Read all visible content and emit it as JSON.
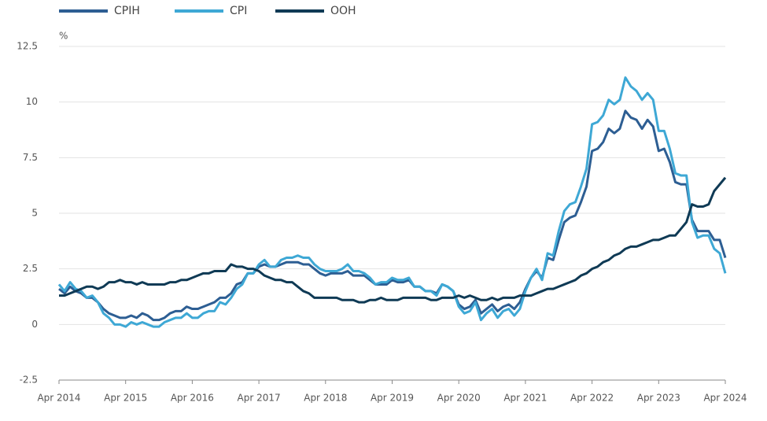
{
  "chart_data": {
    "type": "line",
    "y_label": "%",
    "categories": [
      "Apr 2014",
      null,
      null,
      null,
      null,
      null,
      null,
      null,
      null,
      null,
      null,
      null,
      "Apr 2015",
      null,
      null,
      null,
      null,
      null,
      null,
      null,
      null,
      null,
      null,
      null,
      "Apr 2016",
      null,
      null,
      null,
      null,
      null,
      null,
      null,
      null,
      null,
      null,
      null,
      "Apr 2017",
      null,
      null,
      null,
      null,
      null,
      null,
      null,
      null,
      null,
      null,
      null,
      "Apr 2018",
      null,
      null,
      null,
      null,
      null,
      null,
      null,
      null,
      null,
      null,
      null,
      "Apr 2019",
      null,
      null,
      null,
      null,
      null,
      null,
      null,
      null,
      null,
      null,
      null,
      "Apr 2020",
      null,
      null,
      null,
      null,
      null,
      null,
      null,
      null,
      null,
      null,
      null,
      "Apr 2021",
      null,
      null,
      null,
      null,
      null,
      null,
      null,
      null,
      null,
      null,
      null,
      "Apr 2022",
      null,
      null,
      null,
      null,
      null,
      null,
      null,
      null,
      null,
      null,
      null,
      "Apr 2023",
      null,
      null,
      null,
      null,
      null,
      null,
      null,
      null,
      null,
      null,
      null,
      "Apr 2024"
    ],
    "series": [
      {
        "name": "CPIH",
        "color": "#2d5e93",
        "values": [
          1.6,
          1.4,
          1.7,
          1.5,
          1.4,
          1.2,
          1.2,
          1.0,
          0.7,
          0.5,
          0.4,
          0.3,
          0.3,
          0.4,
          0.3,
          0.5,
          0.4,
          0.2,
          0.2,
          0.3,
          0.5,
          0.6,
          0.6,
          0.8,
          0.7,
          0.7,
          0.8,
          0.9,
          1.0,
          1.2,
          1.2,
          1.4,
          1.8,
          1.9,
          2.3,
          2.3,
          2.6,
          2.7,
          2.6,
          2.6,
          2.7,
          2.8,
          2.8,
          2.8,
          2.7,
          2.7,
          2.5,
          2.3,
          2.2,
          2.3,
          2.3,
          2.3,
          2.4,
          2.2,
          2.2,
          2.2,
          2.0,
          1.8,
          1.8,
          1.8,
          2.0,
          1.9,
          1.9,
          2.0,
          1.7,
          1.7,
          1.5,
          1.5,
          1.4,
          1.8,
          1.7,
          1.5,
          0.9,
          0.7,
          0.8,
          1.1,
          0.5,
          0.7,
          0.9,
          0.6,
          0.8,
          0.9,
          0.7,
          1.0,
          1.6,
          2.1,
          2.4,
          2.1,
          3.0,
          2.9,
          3.8,
          4.6,
          4.8,
          4.9,
          5.5,
          6.2,
          7.8,
          7.9,
          8.2,
          8.8,
          8.6,
          8.8,
          9.6,
          9.3,
          9.2,
          8.8,
          9.2,
          8.9,
          7.8,
          7.9,
          7.3,
          6.4,
          6.3,
          6.3,
          4.7,
          4.2,
          4.2,
          4.2,
          3.8,
          3.8,
          3.0
        ]
      },
      {
        "name": "CPI",
        "color": "#3ea8d5",
        "values": [
          1.8,
          1.5,
          1.9,
          1.6,
          1.5,
          1.2,
          1.3,
          1.0,
          0.5,
          0.3,
          0.0,
          0.0,
          -0.1,
          0.1,
          0.0,
          0.1,
          0.0,
          -0.1,
          -0.1,
          0.1,
          0.2,
          0.3,
          0.3,
          0.5,
          0.3,
          0.3,
          0.5,
          0.6,
          0.6,
          1.0,
          0.9,
          1.2,
          1.6,
          1.8,
          2.3,
          2.3,
          2.7,
          2.9,
          2.6,
          2.6,
          2.9,
          3.0,
          3.0,
          3.1,
          3.0,
          3.0,
          2.7,
          2.5,
          2.4,
          2.4,
          2.4,
          2.5,
          2.7,
          2.4,
          2.4,
          2.3,
          2.1,
          1.8,
          1.9,
          1.9,
          2.1,
          2.0,
          2.0,
          2.1,
          1.7,
          1.7,
          1.5,
          1.5,
          1.3,
          1.8,
          1.7,
          1.5,
          0.8,
          0.5,
          0.6,
          1.0,
          0.2,
          0.5,
          0.7,
          0.3,
          0.6,
          0.7,
          0.4,
          0.7,
          1.5,
          2.1,
          2.5,
          2.0,
          3.2,
          3.1,
          4.2,
          5.1,
          5.4,
          5.5,
          6.2,
          7.0,
          9.0,
          9.1,
          9.4,
          10.1,
          9.9,
          10.1,
          11.1,
          10.7,
          10.5,
          10.1,
          10.4,
          10.1,
          8.7,
          8.7,
          7.9,
          6.8,
          6.7,
          6.7,
          4.6,
          3.9,
          4.0,
          4.0,
          3.4,
          3.2,
          2.3
        ]
      },
      {
        "name": "OOH",
        "color": "#0f3a55",
        "values": [
          1.3,
          1.3,
          1.4,
          1.5,
          1.6,
          1.7,
          1.7,
          1.6,
          1.7,
          1.9,
          1.9,
          2.0,
          1.9,
          1.9,
          1.8,
          1.9,
          1.8,
          1.8,
          1.8,
          1.8,
          1.9,
          1.9,
          2.0,
          2.0,
          2.1,
          2.2,
          2.3,
          2.3,
          2.4,
          2.4,
          2.4,
          2.7,
          2.6,
          2.6,
          2.5,
          2.5,
          2.4,
          2.2,
          2.1,
          2.0,
          2.0,
          1.9,
          1.9,
          1.7,
          1.5,
          1.4,
          1.2,
          1.2,
          1.2,
          1.2,
          1.2,
          1.1,
          1.1,
          1.1,
          1.0,
          1.0,
          1.1,
          1.1,
          1.2,
          1.1,
          1.1,
          1.1,
          1.2,
          1.2,
          1.2,
          1.2,
          1.2,
          1.1,
          1.1,
          1.2,
          1.2,
          1.2,
          1.3,
          1.2,
          1.3,
          1.2,
          1.1,
          1.1,
          1.2,
          1.1,
          1.2,
          1.2,
          1.2,
          1.3,
          1.3,
          1.3,
          1.4,
          1.5,
          1.6,
          1.6,
          1.7,
          1.8,
          1.9,
          2.0,
          2.2,
          2.3,
          2.5,
          2.6,
          2.8,
          2.9,
          3.1,
          3.2,
          3.4,
          3.5,
          3.5,
          3.6,
          3.7,
          3.8,
          3.8,
          3.9,
          4.0,
          4.0,
          4.3,
          4.6,
          5.4,
          5.3,
          5.3,
          5.4,
          6.0,
          6.3,
          6.6
        ]
      }
    ],
    "ylim": [
      -2.5,
      12.5
    ],
    "yticks": [
      -2.5,
      0,
      2.5,
      5,
      7.5,
      10,
      12.5
    ],
    "grid": true
  }
}
